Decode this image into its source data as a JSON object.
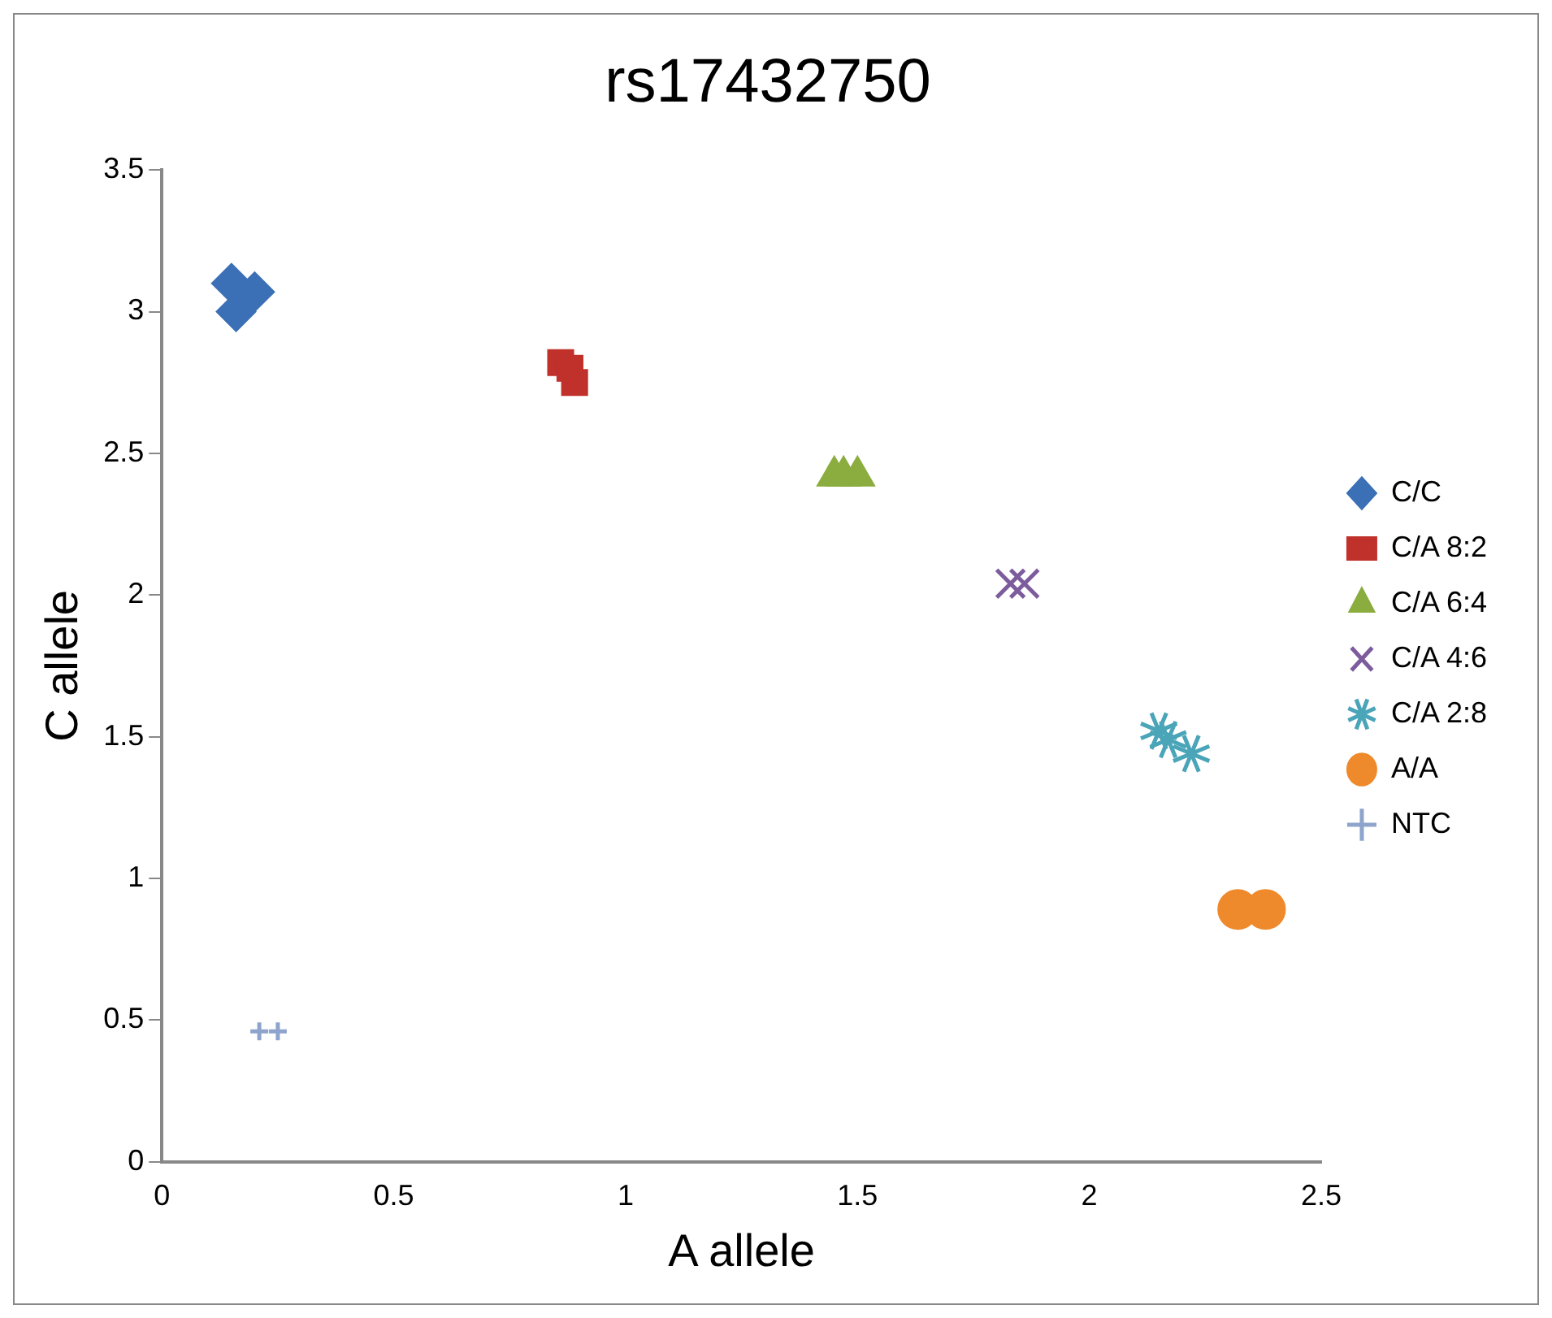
{
  "chart_data": {
    "type": "scatter",
    "title": "rs17432750",
    "xlabel": "A allele",
    "ylabel": "C allele",
    "xlim": [
      0,
      2.5
    ],
    "xticks": [
      0,
      0.5,
      1,
      1.5,
      2,
      2.5
    ],
    "ylim": [
      0,
      3.5
    ],
    "yticks": [
      0,
      0.5,
      1,
      1.5,
      2,
      2.5,
      3,
      3.5
    ],
    "grid": false,
    "legend": "right",
    "series": [
      {
        "name": "C/C",
        "color": "#3b6fb6",
        "marker": "diamond",
        "x": [
          0.15,
          0.2,
          0.16
        ],
        "values": [
          3.1,
          3.07,
          3.0
        ]
      },
      {
        "name": "C/A 8:2",
        "color": "#c0312b",
        "marker": "square",
        "x": [
          0.86,
          0.88,
          0.89
        ],
        "values": [
          2.82,
          2.8,
          2.75
        ]
      },
      {
        "name": "C/A 6:4",
        "color": "#8bad3f",
        "marker": "triangle",
        "x": [
          1.45,
          1.47,
          1.5
        ],
        "values": [
          2.42,
          2.42,
          2.42
        ]
      },
      {
        "name": "C/A 4:6",
        "color": "#7c5c9c",
        "marker": "x",
        "x": [
          1.83,
          1.86
        ],
        "values": [
          2.04,
          2.04
        ]
      },
      {
        "name": "C/A 2:8",
        "color": "#4aa5b8",
        "x": [
          2.15,
          2.17,
          2.22
        ],
        "values": [
          1.52,
          1.49,
          1.44
        ]
      },
      {
        "name": "A/A",
        "color": "#ee8a2c",
        "marker": "circle",
        "x": [
          2.32,
          2.38
        ],
        "values": [
          0.89,
          0.89
        ]
      },
      {
        "name": "NTC",
        "color": "#8ea4cc",
        "marker": "cross",
        "x": [
          0.21,
          0.25
        ],
        "values": [
          0.46,
          0.46
        ]
      }
    ]
  }
}
